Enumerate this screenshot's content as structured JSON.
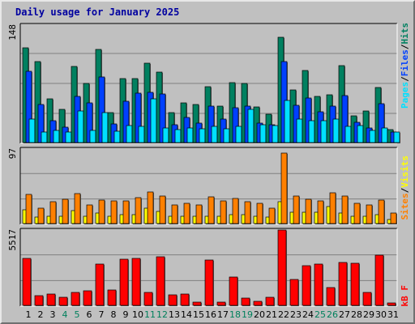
{
  "title": "Daily usage for January 2025",
  "chart_data": [
    {
      "type": "bar",
      "panel": "hits-files-pages",
      "categories": [
        "1",
        "2",
        "3",
        "4",
        "5",
        "6",
        "7",
        "8",
        "9",
        "10",
        "11",
        "12",
        "13",
        "14",
        "15",
        "16",
        "17",
        "18",
        "19",
        "20",
        "21",
        "22",
        "23",
        "24",
        "25",
        "26",
        "27",
        "28",
        "29",
        "30",
        "31"
      ],
      "ymax_label": "148",
      "ylim": [
        0,
        148
      ],
      "series": [
        {
          "name": "Hits",
          "color": "#008060",
          "values": [
            119,
            102,
            55,
            42,
            96,
            75,
            117,
            38,
            81,
            81,
            100,
            89,
            38,
            50,
            48,
            70,
            46,
            76,
            75,
            45,
            36,
            133,
            66,
            91,
            58,
            60,
            97,
            34,
            40,
            69,
            16
          ]
        },
        {
          "name": "Files",
          "color": "#0040ff",
          "values": [
            90,
            48,
            28,
            19,
            58,
            50,
            83,
            23,
            52,
            62,
            63,
            61,
            22,
            32,
            25,
            46,
            30,
            44,
            46,
            25,
            22,
            102,
            47,
            56,
            39,
            46,
            59,
            26,
            18,
            49,
            13
          ]
        },
        {
          "name": "Pages",
          "color": "#00e0ff",
          "values": [
            30,
            13,
            15,
            13,
            40,
            15,
            38,
            14,
            21,
            20,
            55,
            18,
            16,
            18,
            17,
            20,
            17,
            20,
            42,
            22,
            21,
            53,
            30,
            28,
            28,
            30,
            20,
            21,
            15,
            18,
            13
          ]
        }
      ]
    },
    {
      "type": "bar",
      "panel": "sites-visits",
      "categories": [
        "1",
        "2",
        "3",
        "4",
        "5",
        "6",
        "7",
        "8",
        "9",
        "10",
        "11",
        "12",
        "13",
        "14",
        "15",
        "16",
        "17",
        "18",
        "19",
        "20",
        "21",
        "22",
        "23",
        "24",
        "25",
        "26",
        "27",
        "28",
        "29",
        "30",
        "31"
      ],
      "ymax_label": "97",
      "ylim": [
        0,
        97
      ],
      "series": [
        {
          "name": "Sites",
          "color": "#ff8000",
          "values": [
            38,
            20,
            28,
            32,
            39,
            24,
            31,
            29,
            30,
            34,
            41,
            36,
            24,
            26,
            24,
            35,
            30,
            33,
            28,
            26,
            20,
            92,
            36,
            32,
            30,
            40,
            36,
            26,
            24,
            31,
            14
          ]
        },
        {
          "name": "Visits",
          "color": "#ffff00",
          "values": [
            18,
            8,
            9,
            10,
            17,
            9,
            14,
            9,
            12,
            12,
            20,
            16,
            10,
            10,
            9,
            10,
            9,
            12,
            12,
            10,
            8,
            28,
            15,
            15,
            15,
            22,
            14,
            10,
            9,
            12,
            5
          ]
        }
      ]
    },
    {
      "type": "bar",
      "panel": "kbytes",
      "categories": [
        "1",
        "2",
        "3",
        "4",
        "5",
        "6",
        "7",
        "8",
        "9",
        "10",
        "11",
        "12",
        "13",
        "14",
        "15",
        "16",
        "17",
        "18",
        "19",
        "20",
        "21",
        "22",
        "23",
        "24",
        "25",
        "26",
        "27",
        "28",
        "29",
        "30",
        "31"
      ],
      "ymax_label": "5517",
      "ylim": [
        0,
        5517
      ],
      "series": [
        {
          "name": "kB F",
          "color": "#ff0000",
          "values": [
            3470,
            730,
            810,
            610,
            960,
            1070,
            3020,
            1150,
            3390,
            3460,
            920,
            3570,
            800,
            820,
            220,
            3310,
            230,
            2090,
            560,
            280,
            590,
            5517,
            1910,
            2900,
            3030,
            1280,
            3160,
            3100,
            960,
            3700,
            160
          ]
        }
      ]
    }
  ],
  "legend": {
    "pages_label": "Pages",
    "files_label": "Files",
    "hits_label": "Hits",
    "sites_label": "Sites",
    "visits_label": "Visits",
    "kbytes_label": "kB F",
    "sep": "/",
    "pages_color": "#00e0ff",
    "files_color": "#0040ff",
    "hits_color": "#008060",
    "sites_color": "#ff8000",
    "visits_color": "#ffff00",
    "kbytes_color": "#ff0000",
    "sep_color": "#000000"
  },
  "weekend_days": [
    "4",
    "5",
    "11",
    "12",
    "18",
    "19",
    "25",
    "26"
  ],
  "day_color_weekday": "#000000",
  "day_color_weekend": "#00805c"
}
